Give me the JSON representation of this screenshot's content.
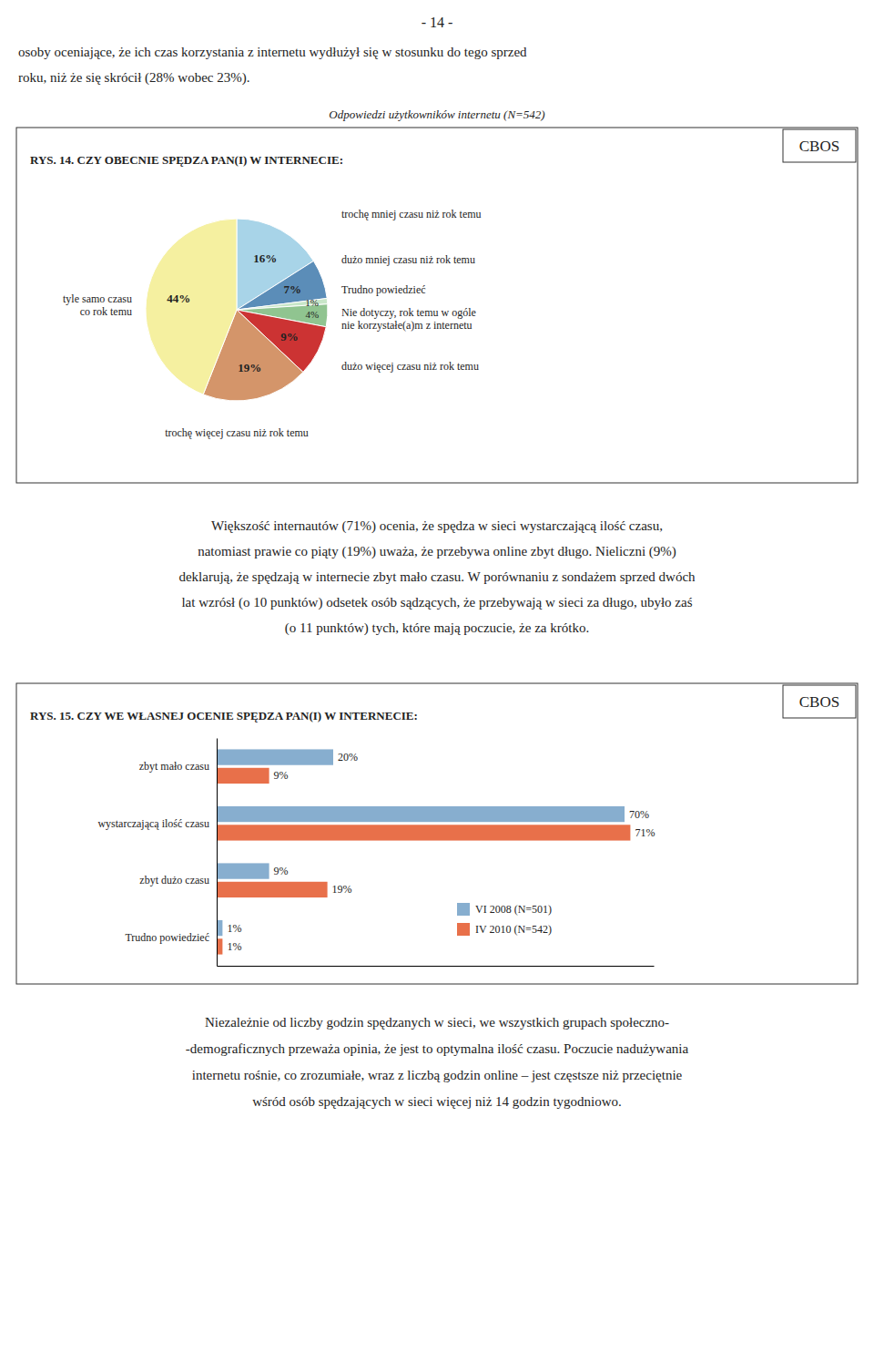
{
  "page_number": "- 14 -",
  "paragraphs": [
    [
      "osoby oceniające, że ich czas korzystania z internetu wydłużył się w stosunku do tego sprzed",
      "roku, niż że się skrócił (28% wobec 23%)."
    ],
    [
      "Większość internautów (71%) ocenia, że spędza w sieci wystarczającą ilość czasu,",
      "natomiast prawie co piąty (19%) uważa, że przebywa online zbyt długo. Nieliczni (9%)",
      "deklarują, że spędzają w internecie zbyt mało czasu. W porównaniu z sondażem sprzed dwóch",
      "lat wzrósł (o 10 punktów) odsetek osób sądzących, że przebywają w sieci za długo, ubyło zaś",
      "(o 11 punktów) tych, które mają poczucie, że za krótko."
    ],
    [
      "Niezależnie od liczby godzin spędzanych w sieci, we wszystkich grupach społeczno-",
      "-demograficznych przeważa opinia, że jest to optymalna ilość czasu. Poczucie nadużywania",
      "internetu rośnie, co zrozumiałe, wraz z liczbą godzin online – jest częstsze niż przeciętnie",
      "wśród osób spędzających w sieci więcej niż 14 godzin tygodniowo."
    ]
  ],
  "chart_data": [
    {
      "type": "pie",
      "title": "RYS. 14. CZY OBECNIE SPĘDZA PAN(I) W INTERNECIE:",
      "subtitle": "Odpowiedzi użytkowników internetu (N=542)",
      "annotations": [
        "CBOS"
      ],
      "categories": [
        "trochę mniej czasu niż rok temu",
        "dużo mniej czasu niż rok temu",
        "Trudno powiedzieć",
        "Nie dotyczy, rok temu w ogóle\nnie korzystałe(a)m z internetu",
        "dużo więcej czasu niż rok temu",
        "trochę więcej czasu niż rok temu",
        "tyle samo czasu\nco rok temu"
      ],
      "values": [
        16,
        7,
        1,
        4,
        9,
        19,
        44
      ],
      "value_labels": [
        "16%",
        "7%",
        "1%",
        "4%",
        "9%",
        "19%",
        "44%"
      ],
      "colors": [
        "#A8D4E8",
        "#5B8DB8",
        "#C8E6C8",
        "#90C490",
        "#CC3333",
        "#D4956A",
        "#F5F0A0"
      ],
      "data_labels": true
    },
    {
      "type": "bar",
      "orientation": "horizontal",
      "title": "RYS. 15. CZY WE WŁASNEJ OCENIE SPĘDZA PAN(I) W INTERNECIE:",
      "annotations": [
        "CBOS"
      ],
      "categories": [
        "zbyt mało czasu",
        "wystarczającą ilość czasu",
        "zbyt dużo czasu",
        "Trudno powiedzieć"
      ],
      "series": [
        {
          "name": "VI 2008 (N=501)",
          "color": "#87AECF",
          "values": [
            20,
            70,
            9,
            1
          ],
          "value_labels": [
            "20%",
            "70%",
            "9%",
            "1%"
          ]
        },
        {
          "name": "IV 2010 (N=542)",
          "color": "#E8704A",
          "values": [
            9,
            71,
            19,
            1
          ],
          "value_labels": [
            "9%",
            "71%",
            "19%",
            "1%"
          ]
        }
      ],
      "xlim": [
        0,
        75
      ],
      "data_labels": true,
      "legend": "lower right",
      "tick_labels": "y"
    }
  ]
}
